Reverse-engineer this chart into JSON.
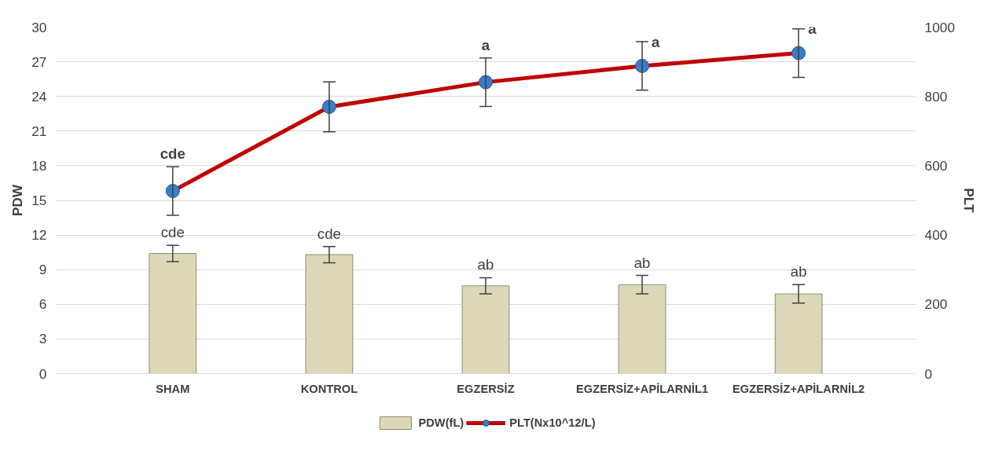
{
  "chart_data": {
    "type": "bar",
    "ylabel": "PDW",
    "y2label": "PLT",
    "categories": [
      "SHAM",
      "KONTROL",
      "EGZERSİZ",
      "EGZERSİZ+APİLARNİL1",
      "EGZERSİZ+APİLARNİL2"
    ],
    "series": [
      {
        "name": "PDW(fL)",
        "color": "#ddd8b8",
        "values": [
          10.4,
          10.3,
          7.6,
          7.7,
          6.9
        ],
        "errors": [
          0.7,
          0.7,
          0.7,
          0.8,
          0.8
        ],
        "value_labels": [
          "cde",
          "cde",
          "ab",
          "ab",
          "ab"
        ]
      },
      {
        "name": "PLT(Nx10^12/L)",
        "type": "line",
        "axis": "y2",
        "color": "#c00000",
        "marker": "circle",
        "values": [
          527,
          770,
          841,
          888,
          925
        ],
        "errors": [
          70,
          72,
          70,
          70,
          70
        ],
        "value_labels": [
          "cde",
          null,
          "a",
          "a",
          "a"
        ]
      }
    ],
    "ylim": [
      0,
      30
    ],
    "yticks": [
      0,
      3,
      6,
      9,
      12,
      15,
      18,
      21,
      24,
      27,
      30
    ],
    "y2lim": [
      0,
      1000
    ],
    "y2ticks": [
      0,
      200,
      400,
      600,
      800,
      1000
    ],
    "grid": "y",
    "legend": "bottom"
  }
}
